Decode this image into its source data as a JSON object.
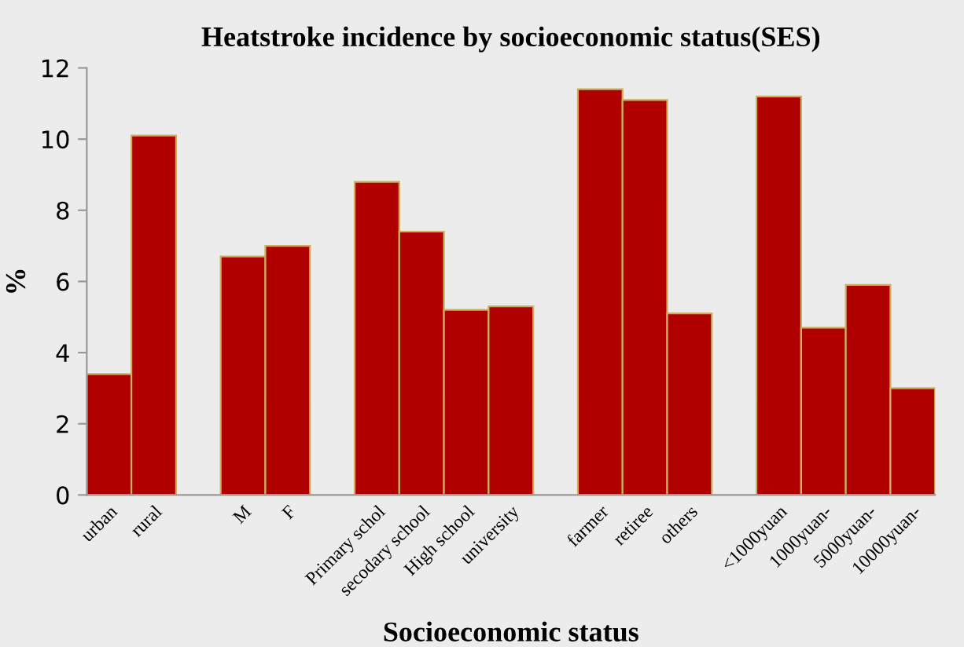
{
  "chart_data": {
    "type": "bar",
    "title": "Heatstroke incidence by socioeconomic status(SES)",
    "xlabel": "Socioeconomic status",
    "ylabel": "%",
    "categories": [
      "urban",
      "rural",
      null,
      "M",
      "F",
      null,
      "Primary schol",
      "secodary school",
      "High school",
      "university",
      null,
      "farmer",
      "retiree",
      "others",
      null,
      "<1000yuan",
      "1000yuan-",
      "5000yuan-",
      "10000yuan-"
    ],
    "values": [
      3.4,
      10.1,
      null,
      6.7,
      7.0,
      null,
      8.8,
      7.4,
      5.2,
      5.3,
      null,
      11.4,
      11.1,
      5.1,
      null,
      11.2,
      4.7,
      5.9,
      3.0
    ],
    "color": "#b00000",
    "ylim": [
      0,
      12
    ],
    "yticks": [
      0,
      2,
      4,
      6,
      8,
      10,
      12
    ],
    "grid": false,
    "legend": false
  }
}
